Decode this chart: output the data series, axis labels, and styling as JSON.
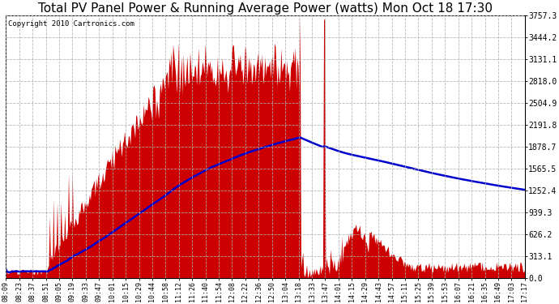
{
  "title": "Total PV Panel Power & Running Average Power (watts) Mon Oct 18 17:30",
  "copyright": "Copyright 2010 Cartronics.com",
  "y_tick_labels": [
    "0.0",
    "313.1",
    "626.2",
    "939.3",
    "1252.4",
    "1565.5",
    "1878.7",
    "2191.8",
    "2504.9",
    "2818.0",
    "3131.1",
    "3444.2",
    "3757.3"
  ],
  "y_tick_values": [
    0.0,
    313.1,
    626.2,
    939.3,
    1252.4,
    1565.5,
    1878.7,
    2191.8,
    2504.9,
    2818.0,
    3131.1,
    3444.2,
    3757.3
  ],
  "x_labels": [
    "08:09",
    "08:23",
    "08:37",
    "08:51",
    "09:05",
    "09:19",
    "09:33",
    "09:47",
    "10:01",
    "10:15",
    "10:29",
    "10:44",
    "10:58",
    "11:12",
    "11:26",
    "11:40",
    "11:54",
    "12:08",
    "12:22",
    "12:36",
    "12:50",
    "13:04",
    "13:18",
    "13:33",
    "13:47",
    "14:01",
    "14:15",
    "14:29",
    "14:43",
    "14:57",
    "15:11",
    "15:25",
    "15:39",
    "15:53",
    "16:07",
    "16:21",
    "16:35",
    "16:49",
    "17:03",
    "17:17"
  ],
  "background_color": "#ffffff",
  "plot_bg_color": "#ffffff",
  "grid_color": "#b0b0b0",
  "fill_color": "#cc0000",
  "line_color": "#0000cc",
  "title_fontsize": 11,
  "ymax": 3757.3,
  "ymin": 0.0,
  "figwidth": 6.9,
  "figheight": 3.75,
  "dpi": 100
}
